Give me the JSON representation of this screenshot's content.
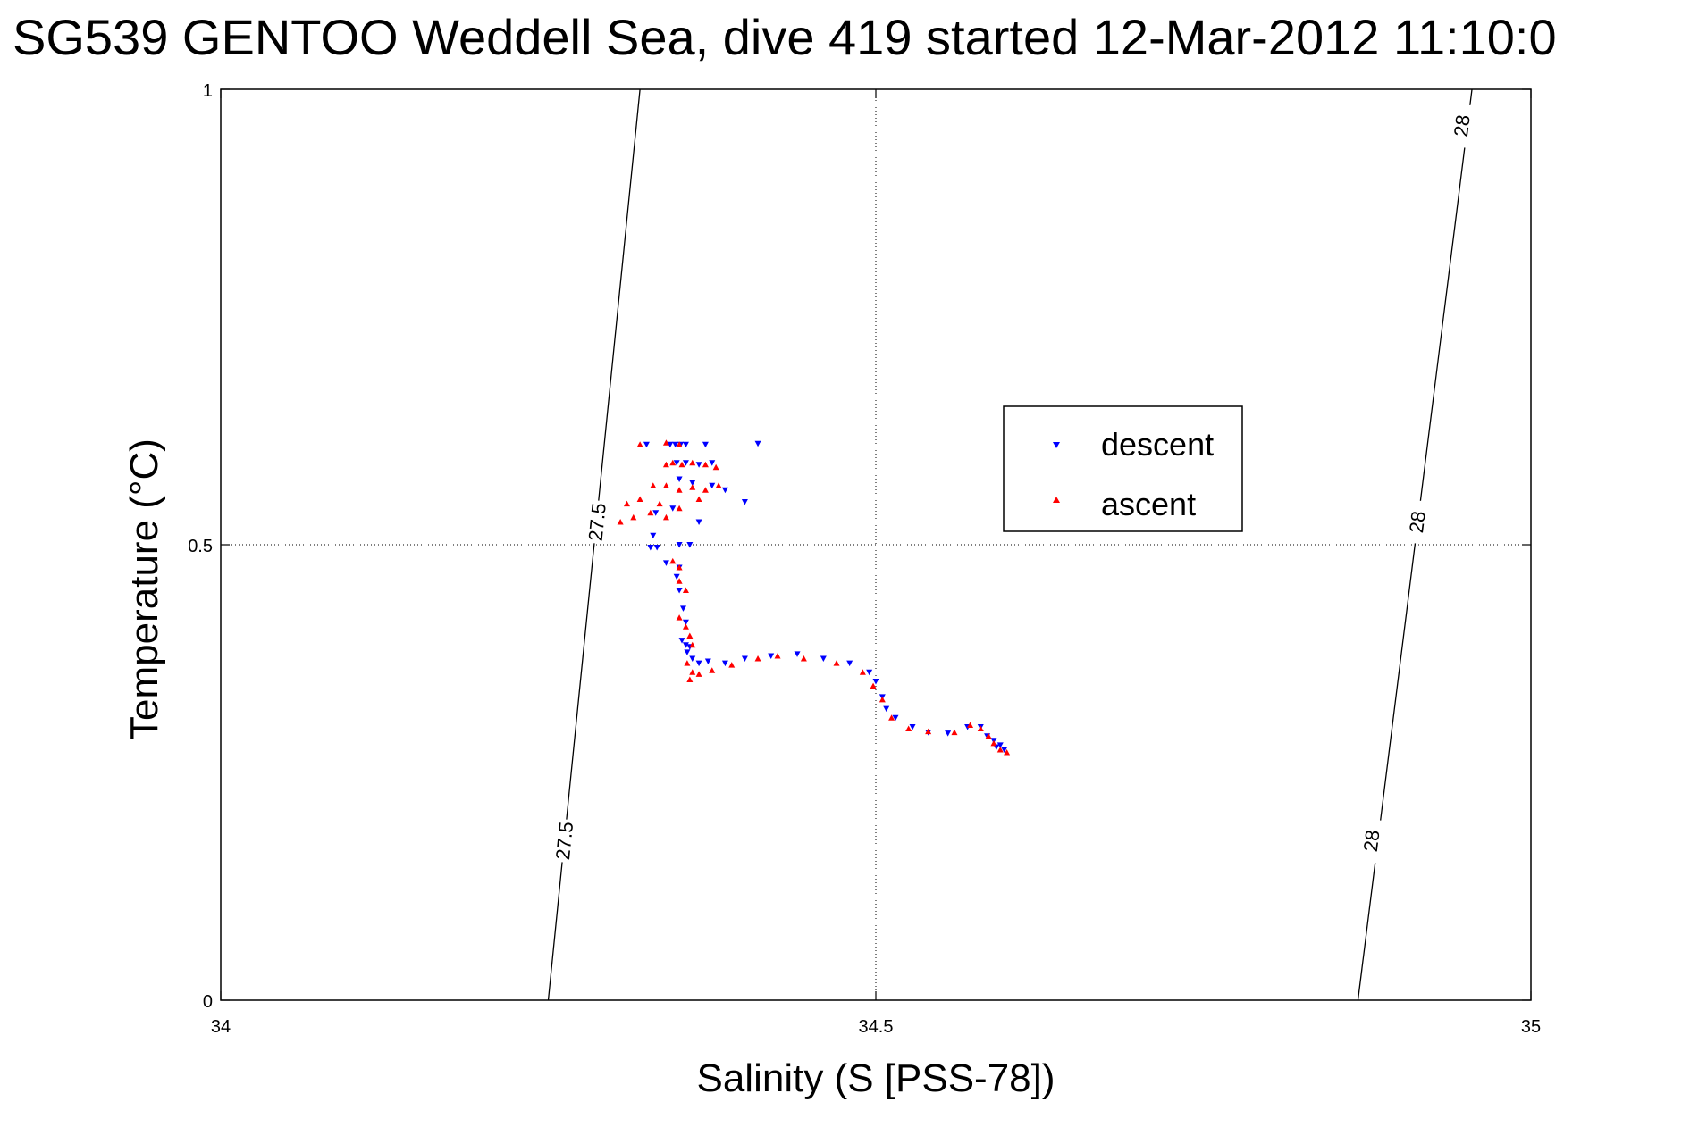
{
  "chart_data": {
    "type": "scatter",
    "title": "SG539 GENTOO Weddell Sea, dive 419 started 12-Mar-2012 11:10:0",
    "xlabel": "Salinity (S [PSS-78])",
    "ylabel": "Temperature (°C)",
    "xlim": [
      34,
      35
    ],
    "ylim": [
      0,
      1
    ],
    "xticks": [
      "34",
      "34.5",
      "35"
    ],
    "yticks": [
      "0",
      "0.5",
      "1"
    ],
    "xtick_values": [
      34,
      34.5,
      35
    ],
    "ytick_values": [
      0,
      0.5,
      1
    ],
    "grid": true,
    "legend_position": "center-right",
    "isopycnals": [
      {
        "label": "27.5",
        "points": [
          [
            34.25,
            0
          ],
          [
            34.32,
            1
          ]
        ],
        "label_positions": [
          [
            34.262,
            0.175
          ],
          [
            34.287,
            0.525
          ]
        ]
      },
      {
        "label": "28",
        "points": [
          [
            34.868,
            0
          ],
          [
            34.955,
            1
          ]
        ],
        "label_positions": [
          [
            34.878,
            0.175
          ],
          [
            34.913,
            0.525
          ],
          [
            34.947,
            0.96
          ]
        ]
      }
    ],
    "series": [
      {
        "name": "descent",
        "color": "#0000ff",
        "marker": "triangle-down",
        "points": [
          [
            34.325,
            0.61
          ],
          [
            34.343,
            0.61
          ],
          [
            34.347,
            0.61
          ],
          [
            34.351,
            0.61
          ],
          [
            34.355,
            0.61
          ],
          [
            34.37,
            0.61
          ],
          [
            34.41,
            0.611
          ],
          [
            34.348,
            0.59
          ],
          [
            34.355,
            0.59
          ],
          [
            34.365,
            0.588
          ],
          [
            34.375,
            0.59
          ],
          [
            34.35,
            0.572
          ],
          [
            34.36,
            0.568
          ],
          [
            34.375,
            0.565
          ],
          [
            34.385,
            0.56
          ],
          [
            34.4,
            0.547
          ],
          [
            34.332,
            0.535
          ],
          [
            34.345,
            0.54
          ],
          [
            34.365,
            0.525
          ],
          [
            34.33,
            0.51
          ],
          [
            34.328,
            0.497
          ],
          [
            34.333,
            0.497
          ],
          [
            34.35,
            0.5
          ],
          [
            34.358,
            0.5
          ],
          [
            34.34,
            0.48
          ],
          [
            34.35,
            0.475
          ],
          [
            34.348,
            0.465
          ],
          [
            34.35,
            0.45
          ],
          [
            34.353,
            0.43
          ],
          [
            34.355,
            0.415
          ],
          [
            34.352,
            0.395
          ],
          [
            34.355,
            0.39
          ],
          [
            34.358,
            0.388
          ],
          [
            34.356,
            0.382
          ],
          [
            34.36,
            0.375
          ],
          [
            34.365,
            0.37
          ],
          [
            34.372,
            0.372
          ],
          [
            34.385,
            0.37
          ],
          [
            34.4,
            0.375
          ],
          [
            34.42,
            0.378
          ],
          [
            34.44,
            0.38
          ],
          [
            34.46,
            0.375
          ],
          [
            34.48,
            0.37
          ],
          [
            34.495,
            0.36
          ],
          [
            34.5,
            0.35
          ],
          [
            34.505,
            0.333
          ],
          [
            34.508,
            0.32
          ],
          [
            34.515,
            0.31
          ],
          [
            34.528,
            0.3
          ],
          [
            34.54,
            0.294
          ],
          [
            34.555,
            0.293
          ],
          [
            34.57,
            0.3
          ],
          [
            34.58,
            0.3
          ],
          [
            34.585,
            0.29
          ],
          [
            34.59,
            0.285
          ],
          [
            34.595,
            0.28
          ],
          [
            34.598,
            0.275
          ],
          [
            34.592,
            0.278
          ]
        ]
      },
      {
        "name": "ascent",
        "color": "#ff0000",
        "marker": "triangle-up",
        "points": [
          [
            34.32,
            0.61
          ],
          [
            34.34,
            0.612
          ],
          [
            34.35,
            0.61
          ],
          [
            34.34,
            0.588
          ],
          [
            34.345,
            0.59
          ],
          [
            34.352,
            0.588
          ],
          [
            34.36,
            0.59
          ],
          [
            34.37,
            0.588
          ],
          [
            34.378,
            0.585
          ],
          [
            34.33,
            0.565
          ],
          [
            34.34,
            0.565
          ],
          [
            34.35,
            0.56
          ],
          [
            34.36,
            0.563
          ],
          [
            34.37,
            0.56
          ],
          [
            34.38,
            0.565
          ],
          [
            34.31,
            0.545
          ],
          [
            34.32,
            0.55
          ],
          [
            34.335,
            0.545
          ],
          [
            34.35,
            0.54
          ],
          [
            34.365,
            0.55
          ],
          [
            34.315,
            0.53
          ],
          [
            34.328,
            0.535
          ],
          [
            34.34,
            0.53
          ],
          [
            34.305,
            0.525
          ],
          [
            34.345,
            0.482
          ],
          [
            34.35,
            0.475
          ],
          [
            34.35,
            0.46
          ],
          [
            34.355,
            0.45
          ],
          [
            34.35,
            0.42
          ],
          [
            34.355,
            0.41
          ],
          [
            34.358,
            0.4
          ],
          [
            34.36,
            0.39
          ],
          [
            34.356,
            0.37
          ],
          [
            34.36,
            0.36
          ],
          [
            34.358,
            0.352
          ],
          [
            34.365,
            0.358
          ],
          [
            34.375,
            0.362
          ],
          [
            34.39,
            0.368
          ],
          [
            34.41,
            0.375
          ],
          [
            34.425,
            0.378
          ],
          [
            34.445,
            0.375
          ],
          [
            34.47,
            0.37
          ],
          [
            34.49,
            0.36
          ],
          [
            34.498,
            0.345
          ],
          [
            34.505,
            0.33
          ],
          [
            34.512,
            0.31
          ],
          [
            34.525,
            0.298
          ],
          [
            34.54,
            0.295
          ],
          [
            34.56,
            0.294
          ],
          [
            34.572,
            0.302
          ],
          [
            34.58,
            0.298
          ],
          [
            34.586,
            0.29
          ],
          [
            34.59,
            0.282
          ],
          [
            34.595,
            0.275
          ],
          [
            34.6,
            0.272
          ]
        ]
      }
    ]
  }
}
